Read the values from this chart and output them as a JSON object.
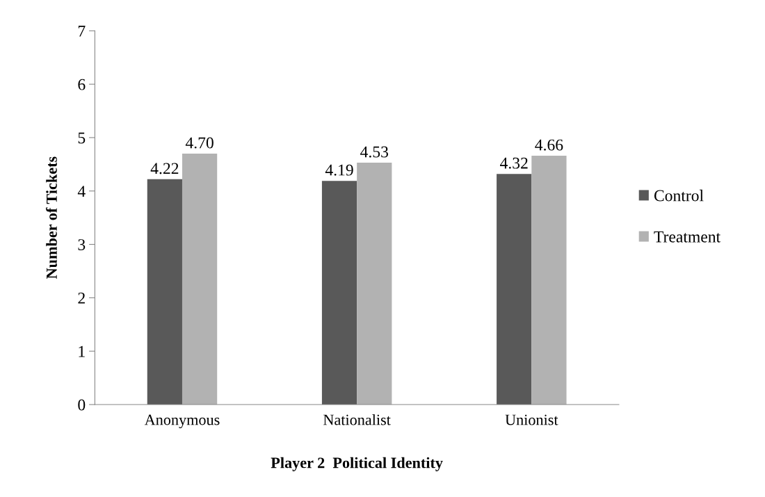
{
  "chart_data": {
    "type": "bar",
    "xlabel": "Player 2  Political Identity",
    "ylabel": "Number of Tickets",
    "categories": [
      "Anonymous",
      "Nationalist",
      "Unionist"
    ],
    "series": [
      {
        "name": "Control",
        "color": "#595959",
        "values": [
          4.22,
          4.19,
          4.32
        ],
        "value_labels": [
          "4.22",
          "4.19",
          "4.32"
        ]
      },
      {
        "name": "Treatment",
        "color": "#b2b2b2",
        "values": [
          4.7,
          4.53,
          4.66
        ],
        "value_labels": [
          "4.70",
          "4.53",
          "4.66"
        ]
      }
    ],
    "ylim": [
      0,
      7
    ],
    "yticks": [
      0,
      1,
      2,
      3,
      4,
      5,
      6,
      7
    ],
    "grid": false,
    "legend": "right"
  }
}
